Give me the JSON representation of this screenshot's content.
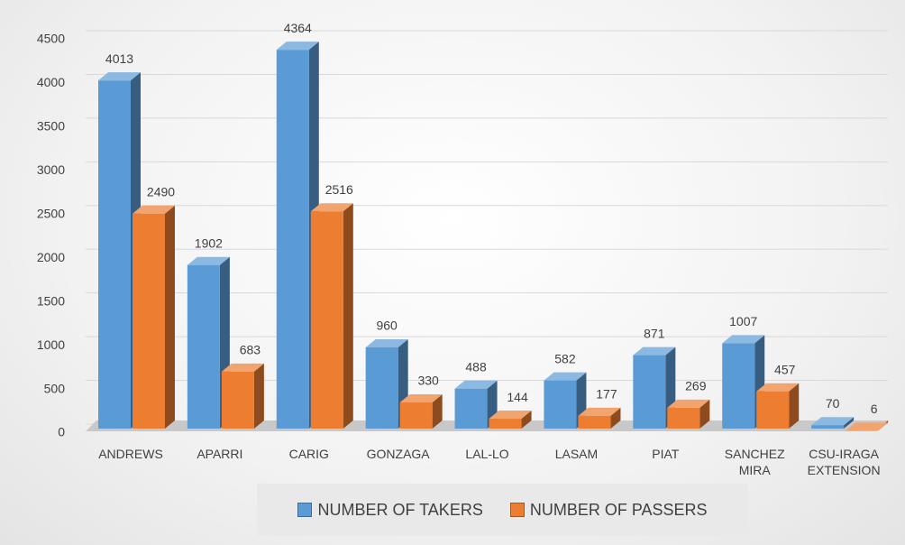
{
  "chart_data": {
    "type": "bar3d",
    "categories": [
      "ANDREWS",
      "APARRI",
      "CARIG",
      "GONZAGA",
      "LAL-LO",
      "LASAM",
      "PIAT",
      "SANCHEZ MIRA",
      "CSU-IRAGA EXTENSION"
    ],
    "series": [
      {
        "name": "NUMBER OF TAKERS",
        "color": "#5b9bd5",
        "values": [
          4013,
          1902,
          4364,
          960,
          488,
          582,
          871,
          1007,
          70
        ]
      },
      {
        "name": "NUMBER OF PASSERS",
        "color": "#ed7d31",
        "values": [
          2490,
          683,
          2516,
          330,
          144,
          177,
          269,
          457,
          6
        ]
      }
    ],
    "ylim": [
      0,
      4500
    ],
    "yticks": [
      0,
      500,
      1000,
      1500,
      2000,
      2500,
      3000,
      3500,
      4000,
      4500
    ],
    "grid": true,
    "legend": "bottom"
  }
}
